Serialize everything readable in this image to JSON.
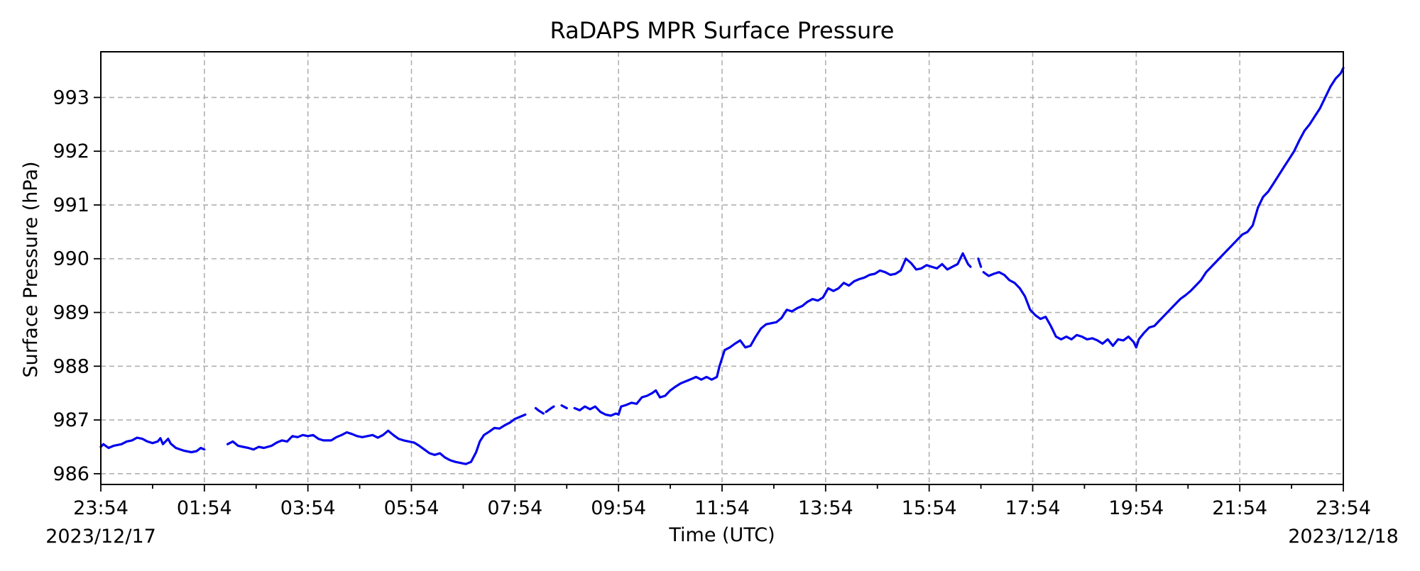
{
  "chart_data": {
    "type": "line",
    "title": "RaDAPS MPR Surface Pressure",
    "xlabel": "Time (UTC)",
    "ylabel": "Surface Pressure (hPa)",
    "x_unit": "hours since 2023/12/17 23:54 UTC",
    "xlim": [
      0,
      24
    ],
    "ylim": [
      985.8,
      993.85
    ],
    "grid": true,
    "x_ticks": [
      {
        "x": 0,
        "label": "23:54"
      },
      {
        "x": 2,
        "label": "01:54"
      },
      {
        "x": 4,
        "label": "03:54"
      },
      {
        "x": 6,
        "label": "05:54"
      },
      {
        "x": 8,
        "label": "07:54"
      },
      {
        "x": 10,
        "label": "09:54"
      },
      {
        "x": 12,
        "label": "11:54"
      },
      {
        "x": 14,
        "label": "13:54"
      },
      {
        "x": 16,
        "label": "15:54"
      },
      {
        "x": 18,
        "label": "17:54"
      },
      {
        "x": 20,
        "label": "19:54"
      },
      {
        "x": 22,
        "label": "21:54"
      },
      {
        "x": 24,
        "label": "23:54"
      }
    ],
    "x_minor_ticks": [
      1,
      3,
      5,
      7,
      9,
      11,
      13,
      15,
      17,
      19,
      21,
      23
    ],
    "date_labels": [
      {
        "x": 0,
        "label": "2023/12/17"
      },
      {
        "x": 24,
        "label": "2023/12/18"
      }
    ],
    "y_ticks": [
      986,
      987,
      988,
      989,
      990,
      991,
      992,
      993
    ],
    "series": [
      {
        "name": "",
        "color": "#0000ee",
        "segments": [
          [
            [
              0.0,
              986.5
            ],
            [
              0.05,
              986.55
            ],
            [
              0.15,
              986.48
            ],
            [
              0.25,
              986.52
            ],
            [
              0.4,
              986.55
            ],
            [
              0.5,
              986.6
            ],
            [
              0.6,
              986.62
            ],
            [
              0.7,
              986.67
            ],
            [
              0.8,
              986.65
            ],
            [
              0.9,
              986.6
            ],
            [
              1.0,
              986.57
            ],
            [
              1.1,
              986.6
            ],
            [
              1.15,
              986.66
            ],
            [
              1.2,
              986.55
            ],
            [
              1.3,
              986.65
            ],
            [
              1.35,
              986.56
            ],
            [
              1.45,
              986.48
            ],
            [
              1.6,
              986.43
            ],
            [
              1.75,
              986.4
            ],
            [
              1.85,
              986.42
            ],
            [
              1.93,
              986.48
            ],
            [
              2.0,
              986.45
            ]
          ],
          [
            [
              2.45,
              986.55
            ],
            [
              2.55,
              986.6
            ],
            [
              2.65,
              986.52
            ],
            [
              2.75,
              986.5
            ],
            [
              2.85,
              986.48
            ],
            [
              2.95,
              986.45
            ],
            [
              3.05,
              986.5
            ],
            [
              3.15,
              986.48
            ],
            [
              3.3,
              986.52
            ],
            [
              3.4,
              986.58
            ],
            [
              3.5,
              986.62
            ],
            [
              3.6,
              986.6
            ],
            [
              3.7,
              986.7
            ],
            [
              3.8,
              986.68
            ],
            [
              3.9,
              986.72
            ],
            [
              4.0,
              986.7
            ],
            [
              4.1,
              986.72
            ],
            [
              4.2,
              986.65
            ],
            [
              4.3,
              986.62
            ],
            [
              4.45,
              986.62
            ],
            [
              4.55,
              986.68
            ],
            [
              4.65,
              986.72
            ],
            [
              4.75,
              986.77
            ],
            [
              4.85,
              986.74
            ],
            [
              4.95,
              986.7
            ],
            [
              5.05,
              986.68
            ],
            [
              5.15,
              986.7
            ],
            [
              5.25,
              986.72
            ],
            [
              5.35,
              986.67
            ],
            [
              5.45,
              986.72
            ],
            [
              5.55,
              986.8
            ],
            [
              5.65,
              986.72
            ],
            [
              5.75,
              986.65
            ],
            [
              5.85,
              986.62
            ],
            [
              5.95,
              986.6
            ],
            [
              6.05,
              986.58
            ],
            [
              6.15,
              986.52
            ],
            [
              6.25,
              986.45
            ],
            [
              6.35,
              986.38
            ],
            [
              6.45,
              986.35
            ],
            [
              6.55,
              986.38
            ],
            [
              6.65,
              986.3
            ],
            [
              6.75,
              986.25
            ],
            [
              6.85,
              986.22
            ],
            [
              6.95,
              986.2
            ],
            [
              7.05,
              986.18
            ],
            [
              7.15,
              986.22
            ],
            [
              7.25,
              986.4
            ],
            [
              7.32,
              986.6
            ],
            [
              7.4,
              986.72
            ],
            [
              7.5,
              986.78
            ],
            [
              7.6,
              986.85
            ],
            [
              7.7,
              986.84
            ],
            [
              7.8,
              986.9
            ],
            [
              7.9,
              986.95
            ],
            [
              8.0,
              987.02
            ],
            [
              8.2,
              987.1
            ]
          ],
          [
            [
              8.4,
              987.22
            ],
            [
              8.45,
              987.18
            ],
            [
              8.55,
              987.12
            ]
          ],
          [
            [
              8.6,
              987.15
            ],
            [
              8.7,
              987.22
            ],
            [
              8.75,
              987.25
            ]
          ],
          [
            [
              8.9,
              987.27
            ],
            [
              9.0,
              987.22
            ]
          ],
          [
            [
              9.15,
              987.22
            ],
            [
              9.25,
              987.18
            ],
            [
              9.35,
              987.25
            ],
            [
              9.45,
              987.2
            ],
            [
              9.55,
              987.25
            ],
            [
              9.65,
              987.15
            ],
            [
              9.75,
              987.1
            ],
            [
              9.85,
              987.08
            ],
            [
              9.95,
              987.12
            ],
            [
              10.0,
              987.1
            ],
            [
              10.05,
              987.25
            ],
            [
              10.15,
              987.28
            ],
            [
              10.25,
              987.32
            ],
            [
              10.35,
              987.3
            ],
            [
              10.45,
              987.42
            ],
            [
              10.55,
              987.45
            ],
            [
              10.65,
              987.5
            ],
            [
              10.72,
              987.55
            ],
            [
              10.8,
              987.42
            ],
            [
              10.9,
              987.45
            ],
            [
              11.0,
              987.55
            ],
            [
              11.1,
              987.62
            ],
            [
              11.2,
              987.68
            ],
            [
              11.3,
              987.72
            ],
            [
              11.4,
              987.76
            ],
            [
              11.5,
              987.8
            ],
            [
              11.6,
              987.75
            ],
            [
              11.7,
              987.8
            ],
            [
              11.8,
              987.75
            ],
            [
              11.9,
              987.8
            ],
            [
              11.95,
              988.0
            ],
            [
              12.05,
              988.3
            ],
            [
              12.15,
              988.35
            ],
            [
              12.25,
              988.42
            ],
            [
              12.35,
              988.48
            ],
            [
              12.45,
              988.35
            ],
            [
              12.55,
              988.38
            ],
            [
              12.65,
              988.55
            ],
            [
              12.75,
              988.7
            ],
            [
              12.85,
              988.78
            ],
            [
              12.95,
              988.8
            ],
            [
              13.05,
              988.82
            ],
            [
              13.15,
              988.9
            ],
            [
              13.25,
              989.05
            ],
            [
              13.35,
              989.02
            ],
            [
              13.45,
              989.08
            ],
            [
              13.55,
              989.12
            ],
            [
              13.65,
              989.2
            ],
            [
              13.75,
              989.25
            ],
            [
              13.85,
              989.22
            ],
            [
              13.95,
              989.28
            ],
            [
              14.05,
              989.45
            ],
            [
              14.15,
              989.4
            ],
            [
              14.25,
              989.45
            ],
            [
              14.35,
              989.55
            ],
            [
              14.45,
              989.5
            ],
            [
              14.55,
              989.58
            ],
            [
              14.65,
              989.62
            ],
            [
              14.75,
              989.65
            ],
            [
              14.85,
              989.7
            ],
            [
              14.95,
              989.72
            ],
            [
              15.05,
              989.78
            ],
            [
              15.15,
              989.75
            ],
            [
              15.25,
              989.7
            ],
            [
              15.35,
              989.72
            ],
            [
              15.45,
              989.78
            ],
            [
              15.55,
              990.0
            ],
            [
              15.65,
              989.92
            ],
            [
              15.75,
              989.8
            ],
            [
              15.85,
              989.82
            ],
            [
              15.95,
              989.88
            ],
            [
              16.05,
              989.85
            ],
            [
              16.15,
              989.82
            ],
            [
              16.25,
              989.9
            ],
            [
              16.35,
              989.8
            ],
            [
              16.45,
              989.85
            ],
            [
              16.55,
              989.9
            ],
            [
              16.65,
              990.1
            ],
            [
              16.75,
              989.9
            ],
            [
              16.8,
              989.85
            ]
          ],
          [
            [
              16.95,
              990.0
            ],
            [
              17.0,
              989.85
            ]
          ],
          [
            [
              17.05,
              989.75
            ],
            [
              17.15,
              989.68
            ],
            [
              17.25,
              989.72
            ],
            [
              17.35,
              989.75
            ],
            [
              17.45,
              989.7
            ],
            [
              17.55,
              989.6
            ],
            [
              17.65,
              989.55
            ],
            [
              17.75,
              989.45
            ],
            [
              17.85,
              989.3
            ],
            [
              17.95,
              989.05
            ],
            [
              18.05,
              988.95
            ],
            [
              18.15,
              988.88
            ],
            [
              18.25,
              988.92
            ],
            [
              18.35,
              988.75
            ],
            [
              18.45,
              988.55
            ],
            [
              18.55,
              988.5
            ],
            [
              18.65,
              988.55
            ],
            [
              18.75,
              988.5
            ],
            [
              18.85,
              988.58
            ],
            [
              18.95,
              988.55
            ],
            [
              19.05,
              988.5
            ],
            [
              19.15,
              988.52
            ],
            [
              19.25,
              988.48
            ],
            [
              19.35,
              988.42
            ],
            [
              19.45,
              988.5
            ],
            [
              19.55,
              988.38
            ],
            [
              19.65,
              988.5
            ],
            [
              19.75,
              988.48
            ],
            [
              19.85,
              988.55
            ],
            [
              19.95,
              988.45
            ],
            [
              20.0,
              988.35
            ],
            [
              20.05,
              988.5
            ],
            [
              20.15,
              988.62
            ],
            [
              20.25,
              988.72
            ],
            [
              20.35,
              988.75
            ],
            [
              20.45,
              988.85
            ],
            [
              20.55,
              988.95
            ],
            [
              20.65,
              989.05
            ],
            [
              20.75,
              989.15
            ],
            [
              20.85,
              989.25
            ],
            [
              20.95,
              989.32
            ],
            [
              21.05,
              989.4
            ],
            [
              21.15,
              989.5
            ],
            [
              21.25,
              989.6
            ],
            [
              21.35,
              989.75
            ],
            [
              21.45,
              989.85
            ],
            [
              21.55,
              989.95
            ],
            [
              21.65,
              990.05
            ],
            [
              21.75,
              990.15
            ],
            [
              21.85,
              990.25
            ],
            [
              21.95,
              990.35
            ],
            [
              22.05,
              990.45
            ],
            [
              22.15,
              990.5
            ],
            [
              22.25,
              990.62
            ],
            [
              22.35,
              990.95
            ],
            [
              22.45,
              991.15
            ],
            [
              22.55,
              991.25
            ],
            [
              22.65,
              991.4
            ],
            [
              22.75,
              991.55
            ],
            [
              22.85,
              991.7
            ],
            [
              22.95,
              991.85
            ],
            [
              23.05,
              992.0
            ],
            [
              23.15,
              992.2
            ],
            [
              23.25,
              992.38
            ],
            [
              23.35,
              992.5
            ],
            [
              23.45,
              992.65
            ],
            [
              23.55,
              992.8
            ],
            [
              23.65,
              993.0
            ],
            [
              23.75,
              993.2
            ],
            [
              23.85,
              993.35
            ],
            [
              23.95,
              993.45
            ],
            [
              24.0,
              993.55
            ]
          ]
        ]
      }
    ]
  }
}
